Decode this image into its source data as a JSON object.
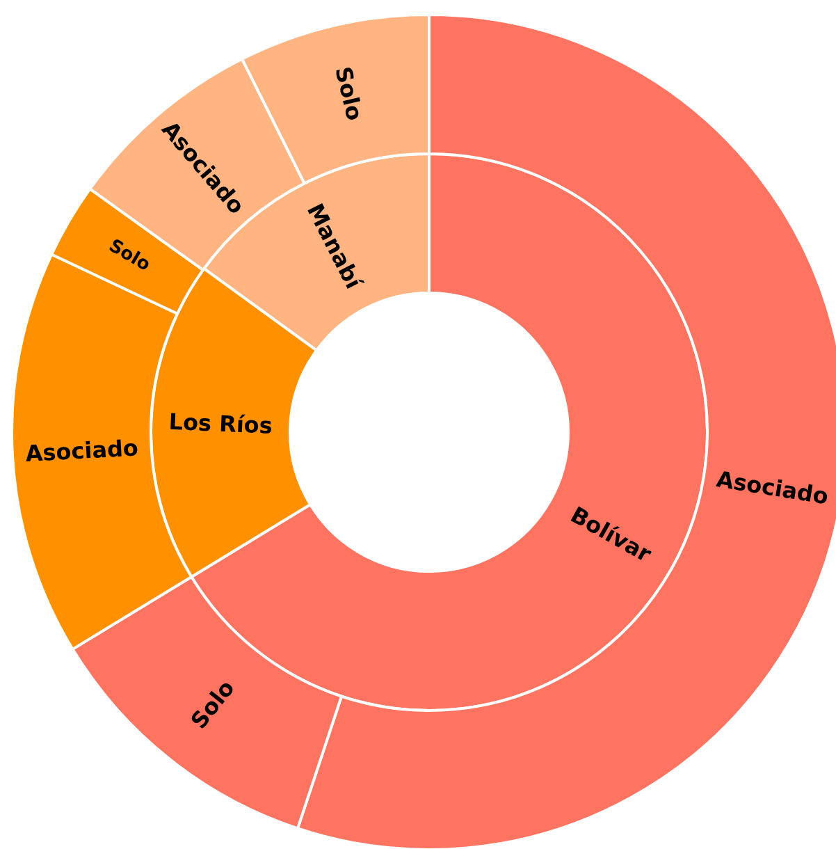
{
  "chart_data": {
    "type": "donut",
    "series": [
      {
        "value_labels": [
          "Bolívar",
          "Los Ríos",
          "Manabí"
        ],
        "values": [
          66.3,
          18.7,
          15.0
        ],
        "colors": [
          "#ff7461",
          "#ff9000",
          "#ffb482"
        ]
      },
      {
        "value_labels": [
          "Asociado",
          "Solo",
          "Asociado",
          "Solo",
          "Asociado",
          "Solo"
        ],
        "values": [
          55.1,
          11.2,
          15.7,
          2.9,
          7.7,
          7.4
        ],
        "colors": [
          "#ff7461",
          "#ff7461",
          "#ff9000",
          "#ff9000",
          "#ffb482",
          "#ffb482"
        ]
      }
    ]
  }
}
